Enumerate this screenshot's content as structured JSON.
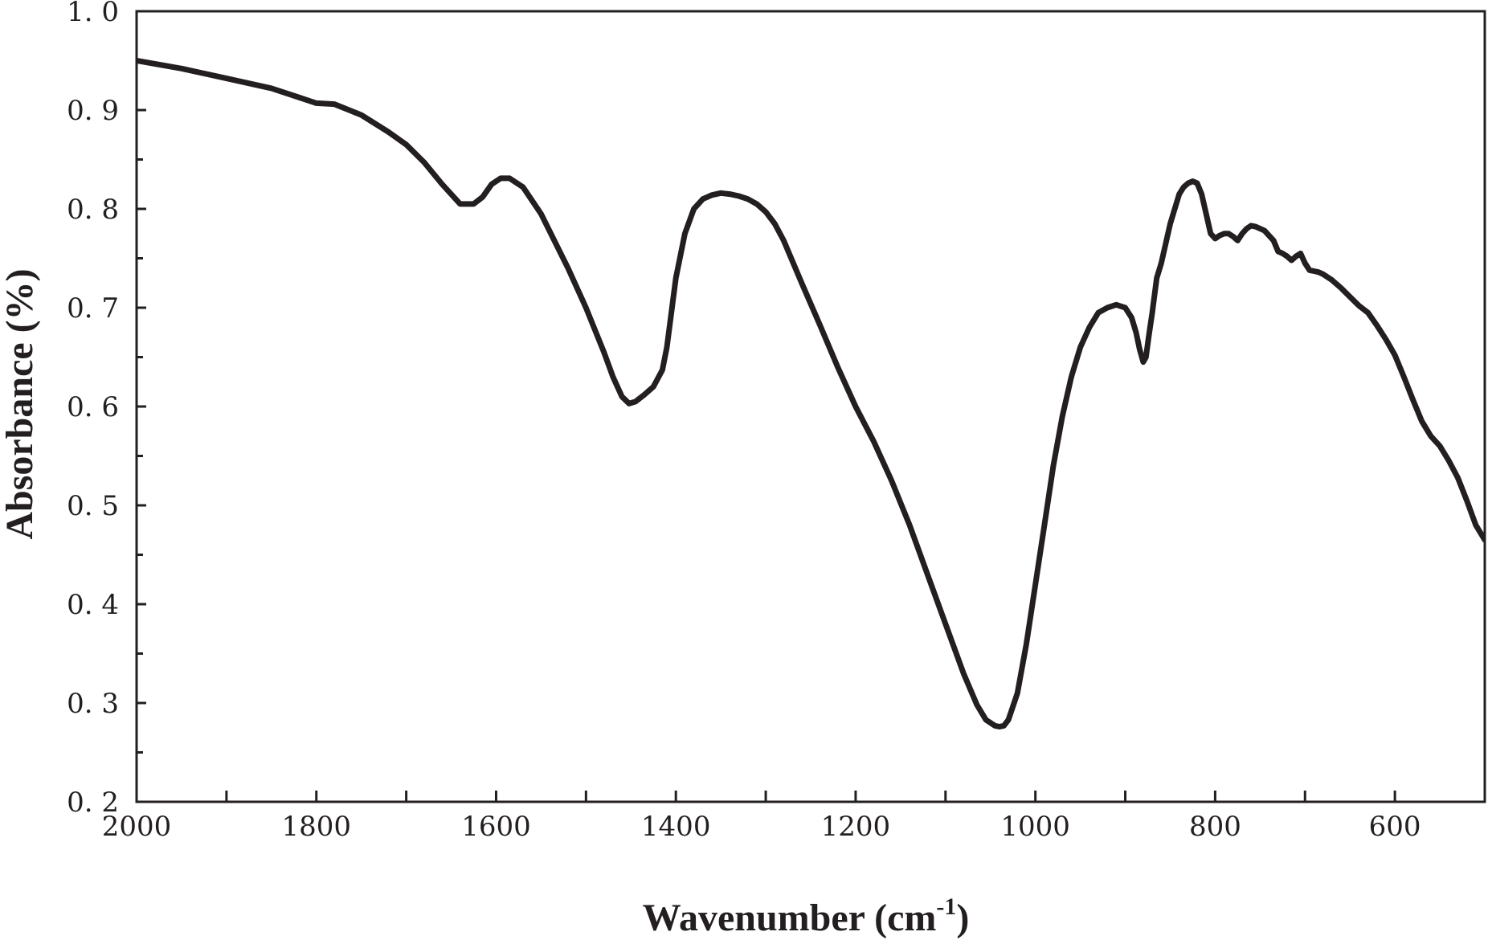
{
  "chart_data": {
    "type": "line",
    "title": "",
    "xlabel": "Wavenumber (cm",
    "xlabel_sup": "-1",
    "xlabel_tail": ")",
    "ylabel": "Absorbance (%)",
    "x_reversed": true,
    "xlim": [
      2000,
      500
    ],
    "ylim": [
      0.2,
      1.0
    ],
    "grid": false,
    "legend": "none",
    "line_color": "#231f20",
    "x_ticks": [
      2000,
      1800,
      1600,
      1400,
      1200,
      1000,
      800,
      600
    ],
    "x_tick_labels": [
      "2000",
      "1800",
      "1600",
      "1400",
      "1200",
      "1000",
      "800",
      "600"
    ],
    "y_ticks": [
      0.2,
      0.3,
      0.4,
      0.5,
      0.6,
      0.7,
      0.8,
      0.9,
      1.0
    ],
    "y_tick_labels": [
      "0. 2",
      "0. 3",
      "0. 4",
      "0. 5",
      "0. 6",
      "0. 7",
      "0. 8",
      "0. 9",
      "1. 0"
    ],
    "series": [
      {
        "x": [
          2000,
          1950,
          1900,
          1850,
          1820,
          1800,
          1780,
          1750,
          1720,
          1700,
          1680,
          1660,
          1640,
          1625,
          1615,
          1605,
          1595,
          1585,
          1570,
          1550,
          1520,
          1500,
          1480,
          1470,
          1460,
          1452,
          1445,
          1435,
          1425,
          1415,
          1410,
          1400,
          1390,
          1380,
          1370,
          1360,
          1350,
          1340,
          1330,
          1320,
          1310,
          1300,
          1290,
          1280,
          1260,
          1240,
          1220,
          1200,
          1180,
          1160,
          1140,
          1120,
          1100,
          1080,
          1065,
          1055,
          1045,
          1040,
          1035,
          1030,
          1020,
          1010,
          1000,
          990,
          980,
          970,
          960,
          950,
          940,
          930,
          920,
          910,
          900,
          893,
          888,
          884,
          880,
          877,
          874,
          870,
          865,
          860,
          855,
          850,
          845,
          840,
          835,
          830,
          825,
          820,
          815,
          810,
          805,
          800,
          795,
          790,
          785,
          780,
          775,
          770,
          765,
          760,
          755,
          750,
          745,
          740,
          735,
          730,
          725,
          720,
          715,
          710,
          705,
          700,
          695,
          690,
          685,
          680,
          670,
          660,
          650,
          640,
          630,
          620,
          610,
          600,
          590,
          580,
          570,
          560,
          550,
          540,
          530,
          520,
          510,
          500
        ],
        "y": [
          0.95,
          0.942,
          0.932,
          0.922,
          0.913,
          0.907,
          0.906,
          0.895,
          0.878,
          0.865,
          0.847,
          0.825,
          0.805,
          0.805,
          0.812,
          0.825,
          0.831,
          0.831,
          0.822,
          0.795,
          0.74,
          0.7,
          0.655,
          0.63,
          0.61,
          0.603,
          0.605,
          0.612,
          0.62,
          0.637,
          0.66,
          0.73,
          0.775,
          0.8,
          0.81,
          0.814,
          0.816,
          0.815,
          0.813,
          0.81,
          0.805,
          0.797,
          0.785,
          0.768,
          0.725,
          0.683,
          0.64,
          0.6,
          0.565,
          0.525,
          0.48,
          0.43,
          0.38,
          0.33,
          0.298,
          0.283,
          0.277,
          0.276,
          0.277,
          0.283,
          0.31,
          0.36,
          0.42,
          0.48,
          0.54,
          0.59,
          0.63,
          0.66,
          0.68,
          0.695,
          0.7,
          0.703,
          0.7,
          0.69,
          0.675,
          0.658,
          0.645,
          0.65,
          0.67,
          0.695,
          0.73,
          0.745,
          0.765,
          0.785,
          0.8,
          0.815,
          0.822,
          0.826,
          0.828,
          0.826,
          0.815,
          0.795,
          0.775,
          0.77,
          0.773,
          0.775,
          0.775,
          0.772,
          0.768,
          0.775,
          0.78,
          0.783,
          0.782,
          0.78,
          0.778,
          0.773,
          0.768,
          0.757,
          0.755,
          0.752,
          0.748,
          0.752,
          0.755,
          0.745,
          0.738,
          0.737,
          0.736,
          0.734,
          0.728,
          0.72,
          0.711,
          0.702,
          0.695,
          0.682,
          0.668,
          0.652,
          0.63,
          0.607,
          0.585,
          0.57,
          0.56,
          0.545,
          0.528,
          0.505,
          0.48,
          0.465
        ]
      }
    ]
  }
}
